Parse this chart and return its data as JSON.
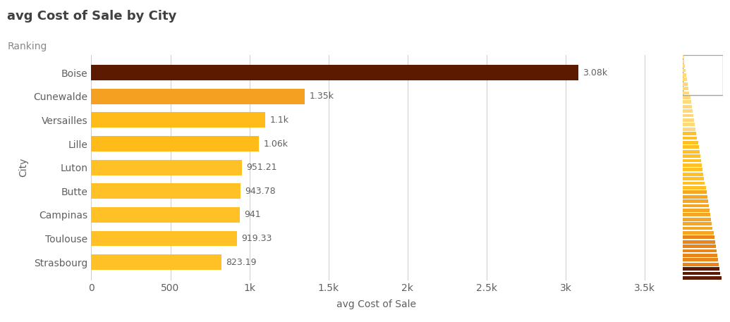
{
  "title": "avg Cost of Sale by City",
  "subtitle": "Ranking",
  "xlabel": "avg Cost of Sale",
  "ylabel": "City",
  "categories": [
    "Strasbourg",
    "Toulouse",
    "Campinas",
    "Butte",
    "Luton",
    "Lille",
    "Versailles",
    "Cunewalde",
    "Boise"
  ],
  "values": [
    823.19,
    919.33,
    941,
    943.78,
    951.21,
    1060,
    1100,
    1350,
    3080
  ],
  "labels": [
    "823.19",
    "919.33",
    "941",
    "943.78",
    "951.21",
    "1.06k",
    "1.1k",
    "1.35k",
    "3.08k"
  ],
  "bar_colors": [
    "#FFC125",
    "#FFC125",
    "#FFC125",
    "#FFC125",
    "#FFC125",
    "#FFBB1A",
    "#FFBB1A",
    "#F5A020",
    "#5C1A00"
  ],
  "xlim": [
    0,
    3600
  ],
  "xticks": [
    0,
    500,
    1000,
    1500,
    2000,
    2500,
    3000,
    3500
  ],
  "xtick_labels": [
    "0",
    "500",
    "1k",
    "1.5k",
    "2k",
    "2.5k",
    "3k",
    "3.5k"
  ],
  "background_color": "#ffffff",
  "grid_color": "#d0d0d0",
  "title_color": "#404040",
  "subtitle_color": "#888888",
  "label_color": "#606060",
  "bar_height": 0.65,
  "title_fontsize": 13,
  "subtitle_fontsize": 10,
  "axis_label_fontsize": 10,
  "tick_fontsize": 10,
  "value_label_fontsize": 9,
  "num_mini_bars": 50,
  "num_visible": 9
}
